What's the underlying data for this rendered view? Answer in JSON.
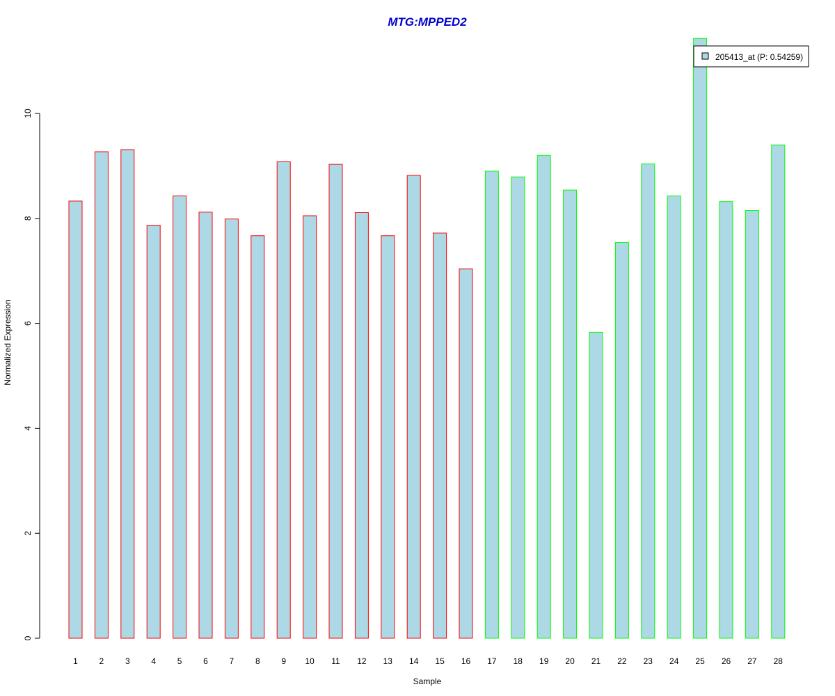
{
  "chart_data": {
    "type": "bar",
    "title": "MTG:MPPED2",
    "xlabel": "Sample",
    "ylabel": "Normalized Expression",
    "categories": [
      "1",
      "2",
      "3",
      "4",
      "5",
      "6",
      "7",
      "8",
      "9",
      "10",
      "11",
      "12",
      "13",
      "14",
      "15",
      "16",
      "17",
      "18",
      "19",
      "20",
      "21",
      "22",
      "23",
      "24",
      "25",
      "26",
      "27",
      "28"
    ],
    "series": [
      {
        "name": "205413_at (P: 0.54259)",
        "values": [
          8.33,
          9.27,
          9.31,
          7.87,
          8.43,
          8.12,
          7.99,
          7.67,
          9.08,
          8.05,
          9.03,
          8.11,
          7.67,
          8.82,
          7.72,
          7.04,
          8.9,
          8.79,
          9.2,
          8.54,
          5.83,
          7.54,
          9.04,
          8.43,
          11.43,
          8.32,
          8.15,
          9.4
        ]
      }
    ],
    "groups": [
      {
        "samples": [
          1,
          16
        ],
        "border_color": "#ff0000"
      },
      {
        "samples": [
          17,
          28
        ],
        "border_color": "#00ff00"
      }
    ],
    "y_ticks": [
      "0",
      "2",
      "4",
      "6",
      "8",
      "10"
    ],
    "ylim": [
      0,
      11.43
    ],
    "grid": false,
    "legend_position": "top-right",
    "colors": {
      "title": "#0000cc",
      "bar_fill": "#add8e6",
      "group1_border": "#ff0000",
      "group2_border": "#00ff00"
    }
  }
}
